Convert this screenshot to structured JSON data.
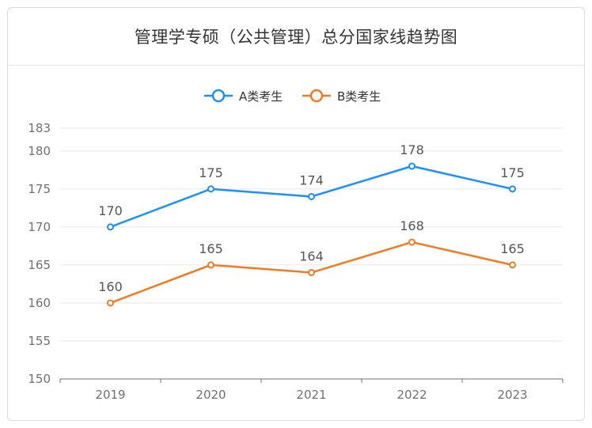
{
  "chart_data": {
    "type": "line",
    "title": "管理学专硕（公共管理）总分国家线趋势图",
    "xlabel": "",
    "ylabel": "",
    "categories": [
      "2019",
      "2020",
      "2021",
      "2022",
      "2023"
    ],
    "series": [
      {
        "name": "A类考生",
        "values": [
          170,
          175,
          174,
          178,
          175
        ],
        "color": "#1890ff"
      },
      {
        "name": "B类考生",
        "values": [
          160,
          165,
          164,
          168,
          165
        ],
        "color": "#f47a20"
      }
    ],
    "ylim": [
      150,
      183
    ],
    "yticks": [
      150,
      155,
      160,
      165,
      170,
      175,
      180,
      183
    ],
    "grid": true,
    "legend_position": "top-center",
    "data_labels": true
  }
}
